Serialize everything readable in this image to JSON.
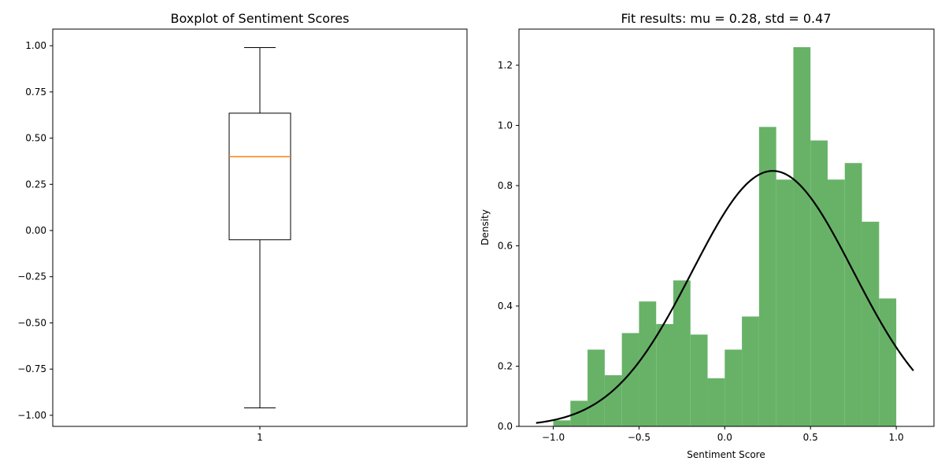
{
  "chart_data": [
    {
      "type": "boxplot",
      "title": "Boxplot of Sentiment Scores",
      "categories": [
        "1"
      ],
      "box": {
        "whisker_low": -0.96,
        "q1": -0.05,
        "median": 0.4,
        "q3": 0.635,
        "whisker_high": 0.99
      },
      "ylim": [
        -1.06,
        1.09
      ],
      "yticks": [
        1.0,
        0.75,
        0.5,
        0.25,
        0.0,
        -0.25,
        -0.5,
        -0.75,
        -1.0
      ],
      "ytick_labels": [
        "1.00",
        "0.75",
        "0.50",
        "0.25",
        "0.00",
        "−0.25",
        "−0.50",
        "−0.75",
        "−1.00"
      ],
      "grid": false,
      "colors": {
        "box": "#000000",
        "median": "#ff7f0e"
      }
    },
    {
      "type": "histogram",
      "title": "Fit results: mu = 0.28, std = 0.47",
      "xlabel": "Sentiment Score",
      "ylabel": "Density",
      "bin_edges": [
        -1.0,
        -0.9,
        -0.8,
        -0.7,
        -0.6,
        -0.5,
        -0.4,
        -0.3,
        -0.2,
        -0.1,
        0.0,
        0.1,
        0.2,
        0.3,
        0.4,
        0.5,
        0.6,
        0.7,
        0.8,
        0.9,
        1.0
      ],
      "densities": [
        0.02,
        0.085,
        0.255,
        0.17,
        0.31,
        0.415,
        0.34,
        0.485,
        0.305,
        0.16,
        0.255,
        0.365,
        0.995,
        0.82,
        1.26,
        0.95,
        0.82,
        0.875,
        0.68,
        0.425
      ],
      "fit": {
        "mu": 0.28,
        "std": 0.47,
        "x_range": [
          -1.1,
          1.1
        ]
      },
      "xlim": [
        -1.2,
        1.22
      ],
      "ylim": [
        0,
        1.32
      ],
      "xticks": [
        -1.0,
        -0.5,
        0.0,
        0.5,
        1.0
      ],
      "xtick_labels": [
        "−1.0",
        "−0.5",
        "0.0",
        "0.5",
        "1.0"
      ],
      "yticks": [
        0.0,
        0.2,
        0.4,
        0.6,
        0.8,
        1.0,
        1.2
      ],
      "ytick_labels": [
        "0.0",
        "0.2",
        "0.4",
        "0.6",
        "0.8",
        "1.0",
        "1.2"
      ],
      "grid": false,
      "colors": {
        "bars": "#67b267",
        "fit_line": "#000000"
      }
    }
  ]
}
